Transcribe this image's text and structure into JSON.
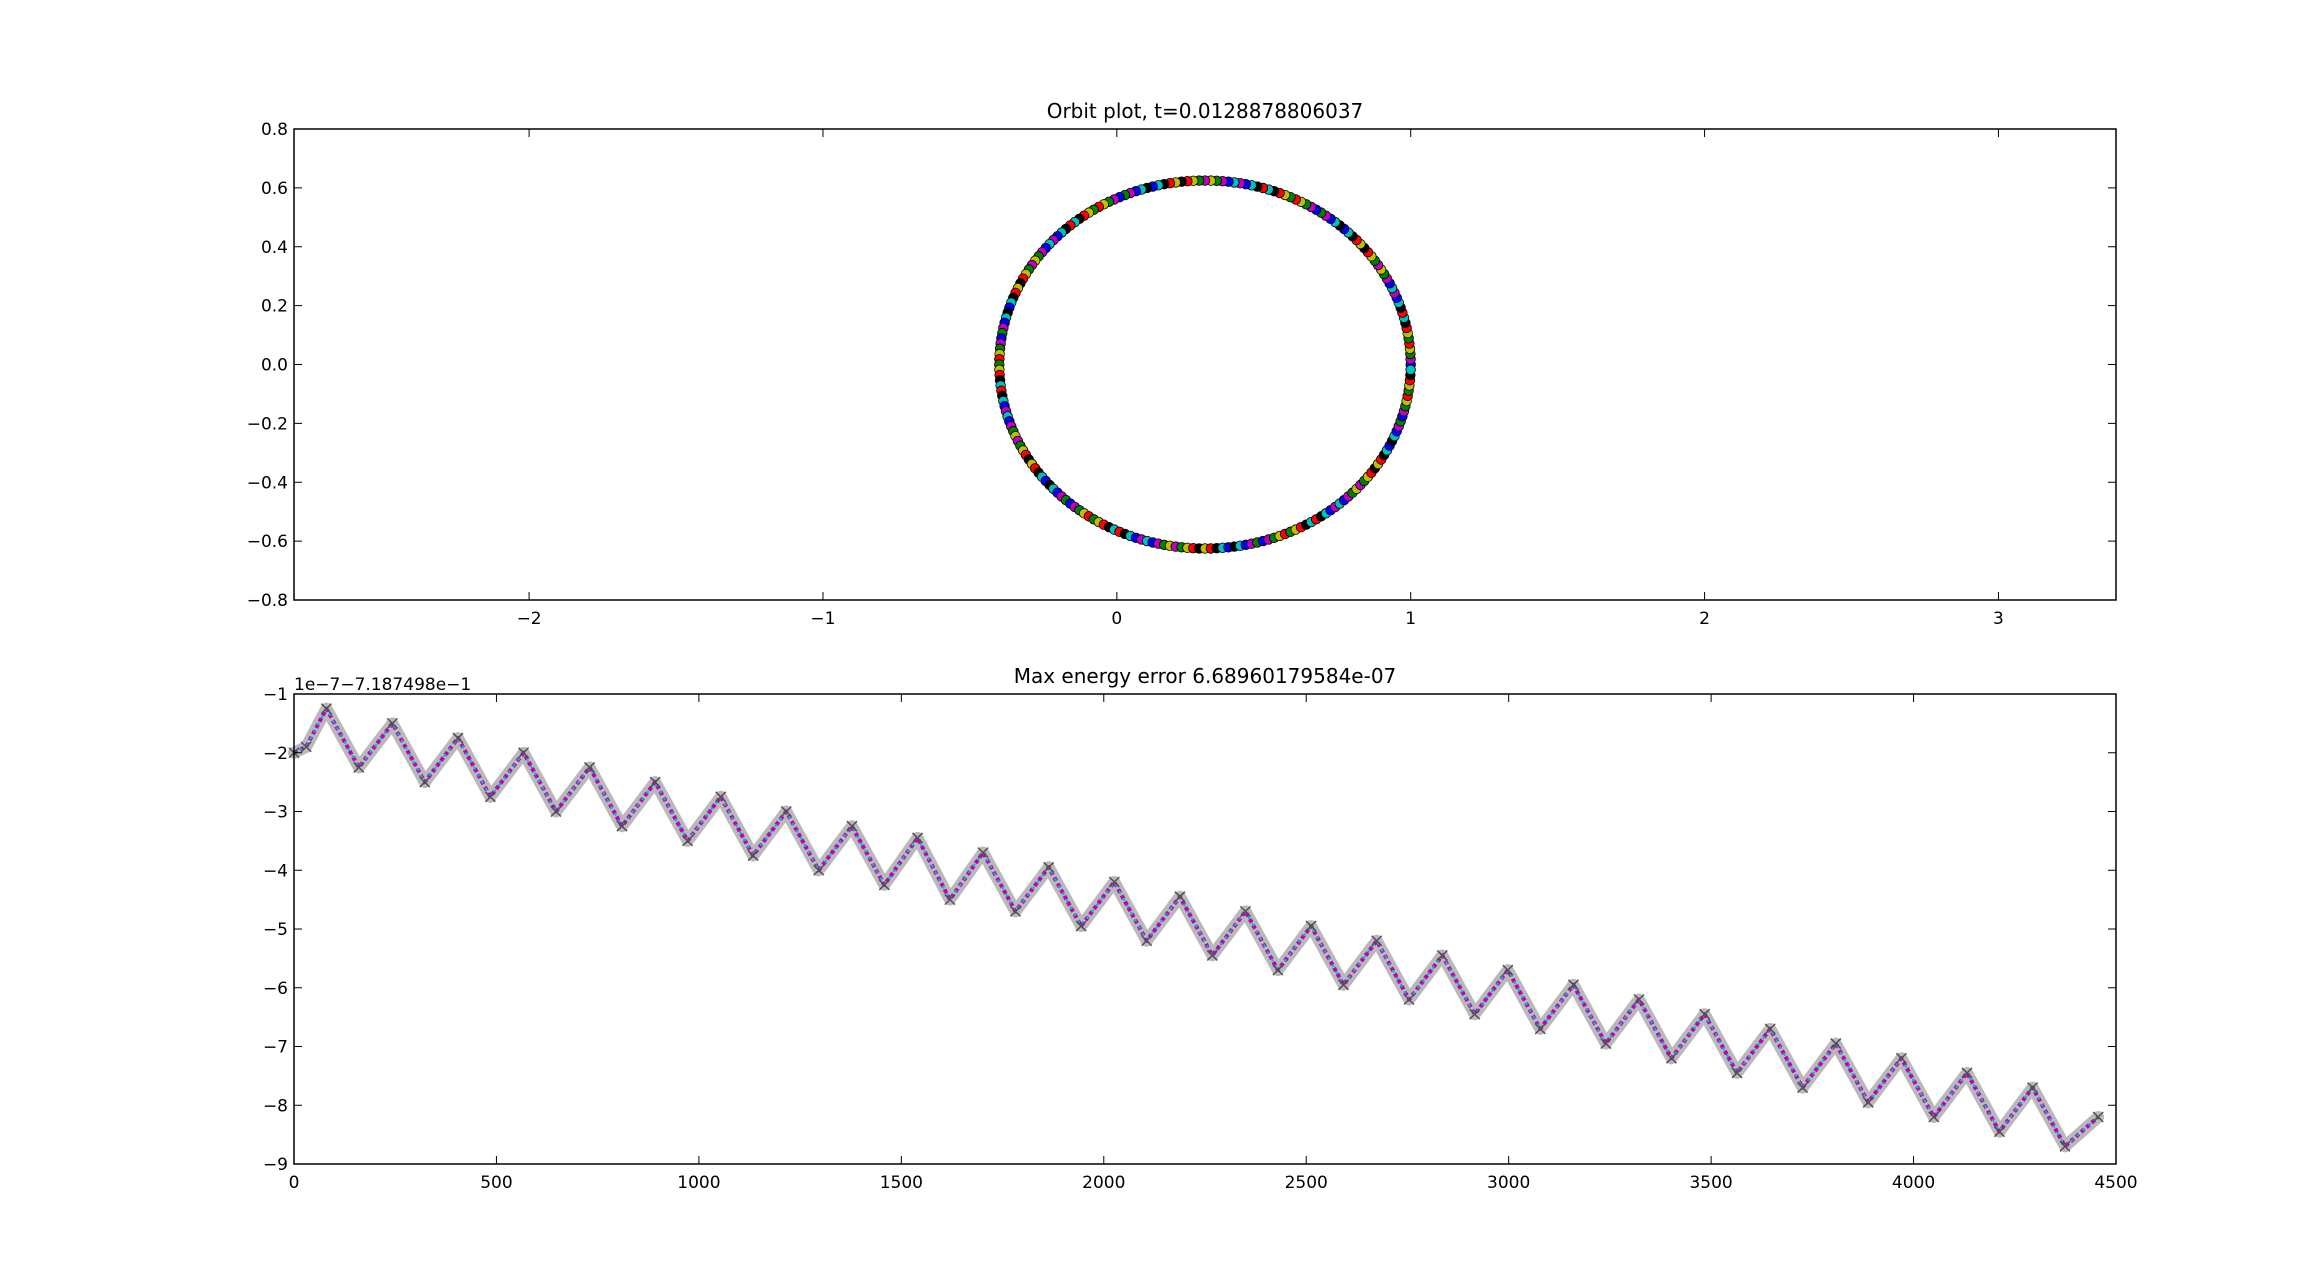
{
  "chart_data": [
    {
      "type": "scatter",
      "title": "Orbit plot, t=0.0128878806037",
      "xlabel": "",
      "ylabel": "",
      "xlim": [
        -2.8,
        3.4
      ],
      "ylim": [
        -0.8,
        0.8
      ],
      "xticks": [
        -2,
        -1,
        0,
        1,
        2,
        3
      ],
      "yticks": [
        0.8,
        0.6,
        0.4,
        0.2,
        0.0,
        -0.2,
        -0.4,
        -0.6,
        -0.8
      ],
      "xtick_labels": [
        "−2",
        "−1",
        "0",
        "1",
        "2",
        "3"
      ],
      "ytick_labels": [
        "0.8",
        "0.6",
        "0.4",
        "0.2",
        "0.0",
        "−0.2",
        "−0.4",
        "−0.6",
        "−0.8"
      ],
      "grid": false,
      "orbit": {
        "center_x": 0.3,
        "center_y": 0.0,
        "semi_axis_x": 0.7,
        "semi_axis_y": 0.625,
        "num_points": 220
      },
      "marker": "circle",
      "colors": [
        "#0000ff",
        "#008000",
        "#ff0000",
        "#00bfbf",
        "#bf00bf",
        "#bfbf00",
        "#000000"
      ]
    },
    {
      "type": "line",
      "title": "Max energy error 6.68960179584e-07",
      "xlabel": "",
      "ylabel": "",
      "offset_text": "1e−7−7.187498e−1",
      "xlim": [
        0,
        4500
      ],
      "ylim": [
        -9,
        -1
      ],
      "xticks": [
        0,
        500,
        1000,
        1500,
        2000,
        2500,
        3000,
        3500,
        4000,
        4500
      ],
      "yticks": [
        -1,
        -2,
        -3,
        -4,
        -5,
        -6,
        -7,
        -8,
        -9
      ],
      "xtick_labels": [
        "0",
        "500",
        "1000",
        "1500",
        "2000",
        "2500",
        "3000",
        "3500",
        "4000",
        "4500"
      ],
      "ytick_labels": [
        "−1",
        "−2",
        "−3",
        "−4",
        "−5",
        "−6",
        "−7",
        "−8",
        "−9"
      ],
      "grid": false,
      "marker": "x",
      "series": [
        {
          "x": [
            0,
            30,
            80,
            160,
            243,
            323,
            405,
            485,
            567,
            647,
            730,
            810,
            892,
            972,
            1054,
            1134,
            1216,
            1296,
            1378,
            1458,
            1540,
            1620,
            1702,
            1782,
            1864,
            1944,
            2026,
            2106,
            2188,
            2268,
            2350,
            2430,
            2512,
            2592,
            2674,
            2754,
            2836,
            2916,
            2998,
            3078,
            3160,
            3240,
            3322,
            3402,
            3484,
            3564,
            3646,
            3726,
            3808,
            3888,
            3970,
            4050,
            4132,
            4212,
            4294,
            4374,
            4456
          ],
          "y": [
            -2.0,
            -1.9,
            -1.25,
            -2.25,
            -1.5,
            -2.5,
            -1.75,
            -2.75,
            -2.0,
            -3.0,
            -2.25,
            -3.25,
            -2.5,
            -3.5,
            -2.75,
            -3.75,
            -3.0,
            -4.0,
            -3.25,
            -4.25,
            -3.45,
            -4.5,
            -3.7,
            -4.7,
            -3.95,
            -4.95,
            -4.2,
            -5.2,
            -4.45,
            -5.45,
            -4.7,
            -5.7,
            -4.95,
            -5.95,
            -5.2,
            -6.2,
            -5.45,
            -6.45,
            -5.7,
            -6.7,
            -5.95,
            -6.95,
            -6.2,
            -7.2,
            -6.45,
            -7.45,
            -6.7,
            -7.7,
            -6.95,
            -7.95,
            -7.2,
            -8.2,
            -7.45,
            -8.45,
            -7.7,
            -8.7,
            -8.2
          ]
        }
      ],
      "colors": [
        "#ff00ff",
        "#00bfbf",
        "#808080"
      ]
    }
  ]
}
